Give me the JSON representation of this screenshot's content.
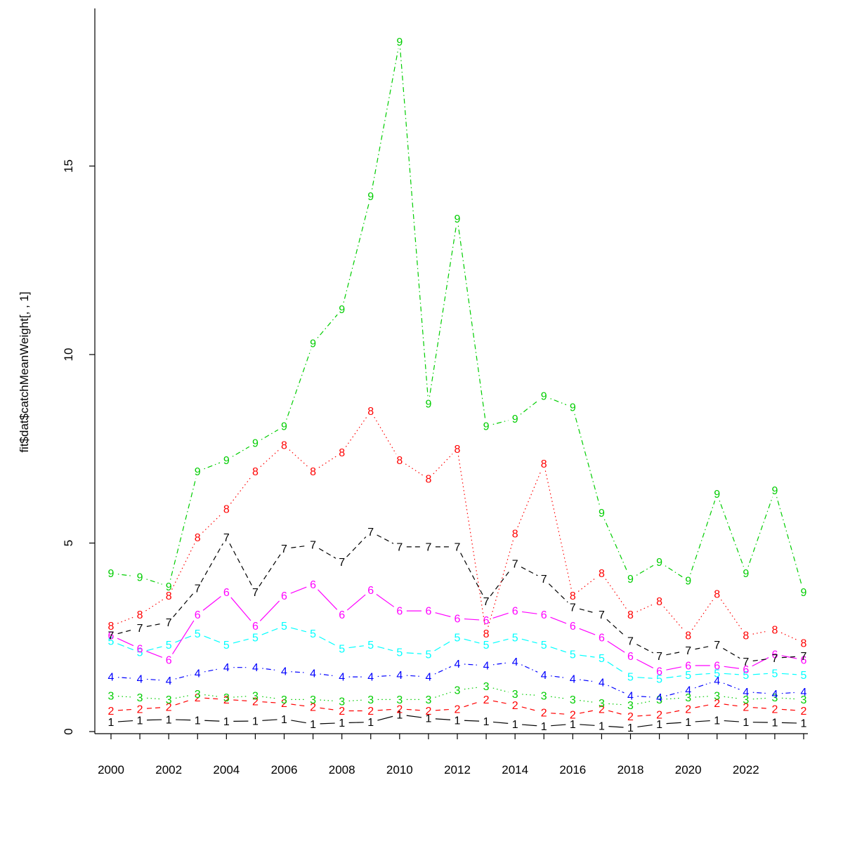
{
  "figure": {
    "background": "#ffffff",
    "title": ""
  },
  "chart_data": {
    "type": "line",
    "title": "",
    "xlabel": "",
    "ylabel": "fit$dat$catchMeanWeight[, , 1]",
    "point_label_style": "series-number-at-each-point",
    "grid": false,
    "legend": "none",
    "xlim": [
      1999.4,
      2024.6
    ],
    "ylim": [
      0,
      18.6
    ],
    "y_ticks": [
      0,
      5,
      10,
      15
    ],
    "x_tick_labels": [
      "2000",
      "2002",
      "2004",
      "2006",
      "2008",
      "2010",
      "2012",
      "2014",
      "2016",
      "2018",
      "2020",
      "2022"
    ],
    "x": [
      2000,
      2001,
      2002,
      2003,
      2004,
      2005,
      2006,
      2007,
      2008,
      2009,
      2010,
      2011,
      2012,
      2013,
      2014,
      2015,
      2016,
      2017,
      2018,
      2019,
      2020,
      2021,
      2022,
      2023,
      2024
    ],
    "series": [
      {
        "name": "1",
        "color": "#000000",
        "linetype": "solid",
        "values": [
          0.25,
          0.3,
          0.32,
          0.3,
          0.27,
          0.28,
          0.33,
          0.2,
          0.23,
          0.25,
          0.45,
          0.35,
          0.3,
          0.27,
          0.2,
          0.14,
          0.2,
          0.15,
          0.1,
          0.2,
          0.25,
          0.3,
          0.25,
          0.24,
          0.22
        ]
      },
      {
        "name": "2",
        "color": "#FF0000",
        "linetype": "dashed",
        "values": [
          0.55,
          0.6,
          0.65,
          0.9,
          0.85,
          0.8,
          0.75,
          0.65,
          0.55,
          0.55,
          0.6,
          0.55,
          0.6,
          0.85,
          0.7,
          0.5,
          0.45,
          0.6,
          0.4,
          0.45,
          0.6,
          0.75,
          0.65,
          0.6,
          0.55
        ]
      },
      {
        "name": "3",
        "color": "#00CD00",
        "linetype": "dotted",
        "values": [
          0.95,
          0.9,
          0.85,
          1.0,
          0.9,
          0.95,
          0.85,
          0.85,
          0.8,
          0.85,
          0.85,
          0.85,
          1.1,
          1.2,
          1.0,
          0.95,
          0.85,
          0.75,
          0.7,
          0.85,
          0.9,
          0.95,
          0.85,
          0.9,
          0.85
        ]
      },
      {
        "name": "4",
        "color": "#0000FF",
        "linetype": "dashdot",
        "values": [
          1.45,
          1.4,
          1.35,
          1.55,
          1.7,
          1.7,
          1.6,
          1.55,
          1.45,
          1.45,
          1.5,
          1.45,
          1.8,
          1.75,
          1.85,
          1.5,
          1.4,
          1.3,
          0.95,
          0.9,
          1.1,
          1.35,
          1.05,
          1.0,
          1.05
        ]
      },
      {
        "name": "5",
        "color": "#00FFFF",
        "linetype": "longdash",
        "values": [
          2.4,
          2.1,
          2.3,
          2.6,
          2.3,
          2.5,
          2.8,
          2.6,
          2.2,
          2.3,
          2.1,
          2.05,
          2.5,
          2.3,
          2.5,
          2.3,
          2.05,
          1.95,
          1.45,
          1.4,
          1.5,
          1.55,
          1.5,
          1.55,
          1.5
        ]
      },
      {
        "name": "6",
        "color": "#FF00FF",
        "linetype": "solid",
        "values": [
          2.55,
          2.2,
          1.9,
          3.1,
          3.7,
          2.8,
          3.6,
          3.9,
          3.1,
          3.75,
          3.2,
          3.2,
          3.0,
          2.95,
          3.2,
          3.1,
          2.8,
          2.5,
          2.0,
          1.6,
          1.75,
          1.75,
          1.65,
          2.05,
          1.9
        ]
      },
      {
        "name": "7",
        "color": "#000000",
        "linetype": "dashed",
        "values": [
          2.55,
          2.75,
          2.9,
          3.8,
          5.15,
          3.7,
          4.85,
          4.95,
          4.5,
          5.3,
          4.9,
          4.9,
          4.9,
          3.45,
          4.45,
          4.05,
          3.3,
          3.1,
          2.4,
          2.0,
          2.15,
          2.3,
          1.85,
          1.95,
          2.0
        ]
      },
      {
        "name": "8",
        "color": "#FF0000",
        "linetype": "dotted",
        "values": [
          2.8,
          3.1,
          3.6,
          5.15,
          5.9,
          6.9,
          7.6,
          6.9,
          7.4,
          8.5,
          7.2,
          6.7,
          7.5,
          2.6,
          5.25,
          7.1,
          3.6,
          4.2,
          3.1,
          3.45,
          2.55,
          3.65,
          2.55,
          2.7,
          2.35
        ]
      },
      {
        "name": "9",
        "color": "#00CD00",
        "linetype": "dashdot",
        "values": [
          4.2,
          4.1,
          3.85,
          6.9,
          7.2,
          7.65,
          8.1,
          10.3,
          11.2,
          14.2,
          18.3,
          8.7,
          13.6,
          8.1,
          8.3,
          8.9,
          8.6,
          5.8,
          4.05,
          4.5,
          4.0,
          6.3,
          4.2,
          6.4,
          3.7
        ]
      }
    ]
  }
}
